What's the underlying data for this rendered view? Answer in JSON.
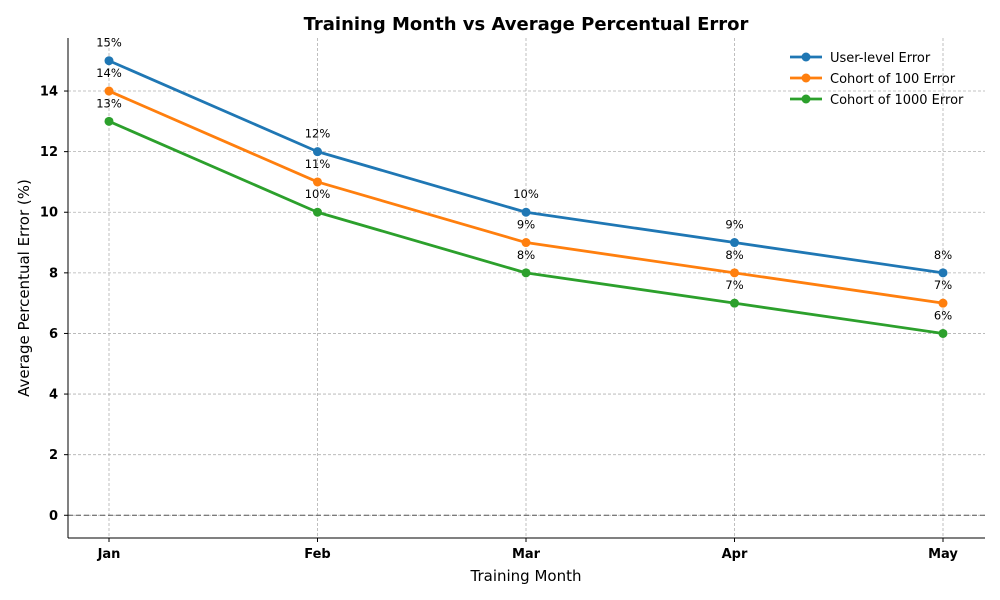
{
  "chart_data": {
    "type": "line",
    "title": "Training Month vs Average Percentual Error",
    "xlabel": "Training Month",
    "ylabel": "Average Percentual Error (%)",
    "categories": [
      "Jan",
      "Feb",
      "Mar",
      "Apr",
      "May"
    ],
    "ylim": [
      -0.75,
      15.75
    ],
    "yticks": [
      0,
      2,
      4,
      6,
      8,
      10,
      12,
      14
    ],
    "grid": true,
    "legend_position": "top-right",
    "reference_line_y": 0,
    "series": [
      {
        "name": "User-level Error",
        "color": "#1f77b4",
        "values": [
          15,
          12,
          10,
          9,
          8
        ],
        "labels": [
          "15%",
          "12%",
          "10%",
          "9%",
          "8%"
        ]
      },
      {
        "name": "Cohort of 100 Error",
        "color": "#ff7f0e",
        "values": [
          14,
          11,
          9,
          8,
          7
        ],
        "labels": [
          "14%",
          "11%",
          "9%",
          "8%",
          "7%"
        ]
      },
      {
        "name": "Cohort of 1000 Error",
        "color": "#2ca02c",
        "values": [
          13,
          10,
          8,
          7,
          6
        ],
        "labels": [
          "13%",
          "10%",
          "8%",
          "7%",
          "6%"
        ]
      }
    ]
  }
}
